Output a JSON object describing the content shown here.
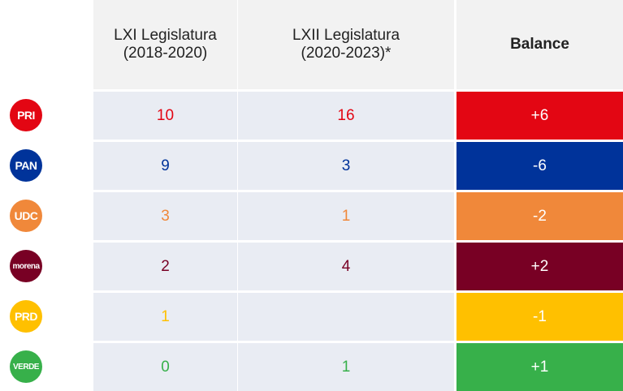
{
  "table": {
    "header": [
      {
        "lines": [
          "LXI Legislatura",
          "(2018-2020)"
        ]
      },
      {
        "lines": [
          "LXII Legislatura",
          "(2020-2023)*"
        ]
      },
      {
        "lines": [
          "Balance"
        ],
        "bold": true
      }
    ],
    "rows": [
      {
        "party": "PRI",
        "color": "#e30613",
        "cells": [
          "10",
          "16",
          "+6"
        ]
      },
      {
        "party": "PAN",
        "color": "#00339a",
        "cells": [
          "9",
          "3",
          "-6"
        ]
      },
      {
        "party": "UDC",
        "color": "#f0883a",
        "cells": [
          "3",
          "1",
          "-2"
        ]
      },
      {
        "party": "morena",
        "color": "#780024",
        "cells": [
          "2",
          "4",
          "+2"
        ]
      },
      {
        "party": "PRD",
        "color": "#ffc000",
        "cells": [
          "1",
          null,
          "-1"
        ]
      },
      {
        "party": "VERDE",
        "color": "#37b04a",
        "cells": [
          "0",
          "1",
          "+1"
        ]
      }
    ]
  }
}
